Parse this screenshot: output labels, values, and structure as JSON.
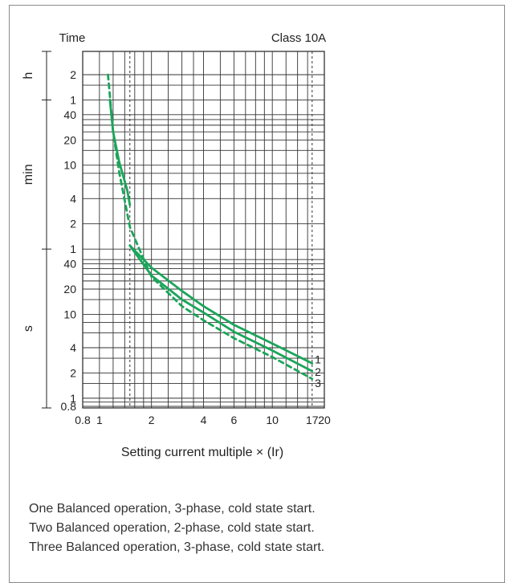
{
  "chart_data": {
    "type": "line",
    "title": "Class 10A",
    "ylabel": "Time",
    "xlabel": "Setting current multiple  × (Ir)",
    "x_scale": "log",
    "y_scale": "log",
    "x_ticks": [
      "0.8",
      "1",
      "2",
      "4",
      "6",
      "10",
      "17",
      "20"
    ],
    "y_ticks": [
      {
        "label": "2",
        "unit": "h"
      },
      {
        "label": "1",
        "unit": "h"
      },
      {
        "label": "40",
        "unit": "min"
      },
      {
        "label": "20",
        "unit": "min"
      },
      {
        "label": "10",
        "unit": "min"
      },
      {
        "label": "4",
        "unit": "min"
      },
      {
        "label": "2",
        "unit": "min"
      },
      {
        "label": "1",
        "unit": "min"
      },
      {
        "label": "40",
        "unit": "s"
      },
      {
        "label": "20",
        "unit": "s"
      },
      {
        "label": "10",
        "unit": "s"
      },
      {
        "label": "4",
        "unit": "s"
      },
      {
        "label": "2",
        "unit": "s"
      },
      {
        "label": "1",
        "unit": "s"
      },
      {
        "label": "0.8",
        "unit": "s"
      }
    ],
    "unit_labels": [
      "h",
      "min",
      "s"
    ],
    "series": [
      {
        "name": "1",
        "color": "#1aa55a",
        "style": "solid",
        "segments": [
          [
            {
              "x": 1.15,
              "y_s": 3600
            },
            {
              "x": 1.2,
              "y_s": 1500
            },
            {
              "x": 1.3,
              "y_s": 660
            },
            {
              "x": 1.45,
              "y_s": 300
            },
            {
              "x": 1.5,
              "y_s": 200
            }
          ],
          [
            {
              "x": 1.5,
              "y_s": 66
            },
            {
              "x": 2,
              "y_s": 36
            },
            {
              "x": 3,
              "y_s": 19
            },
            {
              "x": 4,
              "y_s": 12.5
            },
            {
              "x": 6,
              "y_s": 7.5
            },
            {
              "x": 10,
              "y_s": 4.5
            },
            {
              "x": 17,
              "y_s": 2.6
            }
          ]
        ]
      },
      {
        "name": "2",
        "color": "#1aa55a",
        "style": "solid",
        "segments": [
          [
            {
              "x": 1.5,
              "y_s": 66
            },
            {
              "x": 2,
              "y_s": 29
            },
            {
              "x": 3,
              "y_s": 15
            },
            {
              "x": 4,
              "y_s": 10.5
            },
            {
              "x": 6,
              "y_s": 6.2
            },
            {
              "x": 10,
              "y_s": 3.7
            },
            {
              "x": 17,
              "y_s": 2.1
            }
          ]
        ]
      },
      {
        "name": "3",
        "color": "#1aa55a",
        "style": "dashed",
        "segments": [
          [
            {
              "x": 1.12,
              "y_s": 7200
            },
            {
              "x": 1.2,
              "y_s": 1500
            },
            {
              "x": 1.3,
              "y_s": 500
            },
            {
              "x": 1.5,
              "y_s": 110
            },
            {
              "x": 1.7,
              "y_s": 60
            },
            {
              "x": 2,
              "y_s": 28
            },
            {
              "x": 3,
              "y_s": 12.5
            },
            {
              "x": 4,
              "y_s": 8.5
            },
            {
              "x": 6,
              "y_s": 5.2
            },
            {
              "x": 10,
              "y_s": 3.1
            },
            {
              "x": 17,
              "y_s": 1.7
            }
          ]
        ]
      }
    ],
    "reference_lines_x": [
      1.5,
      17
    ],
    "grid": true
  },
  "notes": [
    "One Balanced operation, 3-phase, cold state start.",
    "Two Balanced operation, 2-phase, cold state start.",
    "Three Balanced operation, 3-phase, cold state start."
  ]
}
